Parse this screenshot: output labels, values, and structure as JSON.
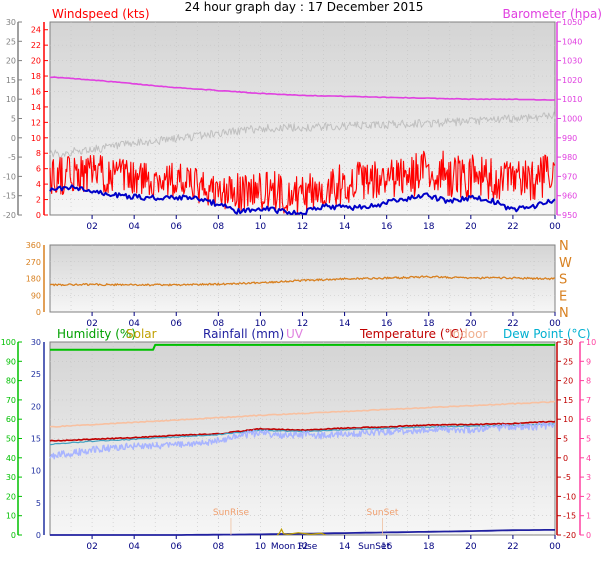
{
  "page_title": "24 hour graph day : 17 December 2015",
  "colors": {
    "panel_top": "#d8d8d8",
    "panel_bottom": "#f4f4f4",
    "gridline": "#c4c4c4",
    "windspeed": "#ff0000",
    "gust_axis": "#808080",
    "barometer": "#e040e0",
    "wind_avg": "#0000c8",
    "gust": "#c0c0c0",
    "direction": "#d88020",
    "humidity": "#00c000",
    "solar": "#c0a000",
    "rainfall": "#2020a0",
    "uv": "#e080e0",
    "temperature": "#c00000",
    "indoor": "#f8c0a0",
    "dewpoint": "#00b0d0",
    "temp_axis": "#ff40a0",
    "rain_axis": "#2030a0",
    "tick_text": "#404040"
  },
  "chart_data": [
    {
      "type": "line",
      "name": "wind-barometer",
      "title": "",
      "x_ticks": [
        "02",
        "04",
        "06",
        "08",
        "10",
        "12",
        "14",
        "16",
        "18",
        "20",
        "22",
        "00"
      ],
      "xlim": [
        0,
        24
      ],
      "left_outer_axis": {
        "ticks": [
          "30",
          "25",
          "20",
          "15",
          "10",
          "5",
          "0",
          "-5",
          "-10",
          "-15",
          "-20"
        ]
      },
      "left_axis": {
        "label": "Windspeed (kts)",
        "ticks": [
          "24",
          "22",
          "20",
          "18",
          "16",
          "14",
          "12",
          "10",
          "8",
          "6",
          "4",
          "2",
          "0"
        ],
        "ylim": [
          0,
          25
        ]
      },
      "right_axis": {
        "label": "Barometer (hpa)",
        "ticks": [
          "1050",
          "1040",
          "1030",
          "1020",
          "1010",
          "1000",
          "990",
          "980",
          "970",
          "960",
          "950"
        ],
        "ylim": [
          950,
          1050
        ]
      },
      "series": [
        {
          "role": "barometer",
          "axis": "right",
          "x": [
            0,
            2,
            4,
            6,
            8,
            10,
            12,
            14,
            16,
            18,
            20,
            22,
            24
          ],
          "y": [
            1021.5,
            1020,
            1018,
            1016,
            1014.5,
            1013,
            1012,
            1011.5,
            1011,
            1010.5,
            1010,
            1010,
            1009.5
          ]
        },
        {
          "role": "gust",
          "axis": "left",
          "x": [
            0,
            2,
            4,
            6,
            8,
            10,
            12,
            14,
            16,
            18,
            20,
            22,
            24
          ],
          "y": [
            7.8,
            8.5,
            9.2,
            9.9,
            10.6,
            11.2,
            11.3,
            11.5,
            11.7,
            11.9,
            12.1,
            12.5,
            12.9
          ]
        },
        {
          "role": "windspeed",
          "axis": "left",
          "low": [
            2.5,
            3,
            2.5,
            2,
            0.5,
            0.5,
            0,
            1.5,
            2,
            2.5,
            2,
            1.5,
            2.5
          ],
          "high": [
            7.5,
            8,
            7,
            7,
            5,
            6,
            5,
            7,
            7,
            8.5,
            8,
            7,
            8
          ],
          "x": [
            0,
            2,
            4,
            6,
            8,
            10,
            12,
            14,
            16,
            18,
            20,
            22,
            24
          ]
        },
        {
          "role": "wind_avg",
          "axis": "left",
          "x": [
            0,
            1,
            2,
            3,
            4,
            5,
            6,
            7,
            8,
            9,
            10,
            11,
            12,
            13,
            14,
            15,
            16,
            17,
            18,
            19,
            20,
            21,
            22,
            23,
            24
          ],
          "y": [
            3.2,
            3.6,
            3,
            2.6,
            2.4,
            2.2,
            2.3,
            2.1,
            1.4,
            0.4,
            0.9,
            0.5,
            0.3,
            1.1,
            1,
            1,
            1.6,
            2.1,
            2.5,
            1.7,
            2.3,
            1.9,
            0.6,
            1.2,
            1.9
          ]
        }
      ]
    },
    {
      "type": "line",
      "name": "wind-direction",
      "title": "",
      "x_ticks": [
        "02",
        "04",
        "06",
        "08",
        "10",
        "12",
        "14",
        "16",
        "18",
        "20",
        "22",
        "00"
      ],
      "xlim": [
        0,
        24
      ],
      "left_axis": {
        "ticks": [
          "360",
          "270",
          "180",
          "90",
          "0"
        ],
        "ylim": [
          0,
          360
        ]
      },
      "right_axis": {
        "ticks": [
          "N",
          "W",
          "S",
          "E",
          "N"
        ]
      },
      "series": [
        {
          "role": "direction",
          "x": [
            0,
            2,
            4,
            6,
            8,
            10,
            12,
            14,
            16,
            18,
            20,
            22,
            24
          ],
          "y": [
            145,
            148,
            146,
            145,
            150,
            158,
            170,
            178,
            182,
            190,
            182,
            183,
            178
          ]
        }
      ]
    },
    {
      "type": "line",
      "name": "temp-humidity",
      "title": "",
      "x_ticks": [
        "02",
        "04",
        "06",
        "08",
        "10",
        "12",
        "14",
        "16",
        "18",
        "20",
        "22",
        "00"
      ],
      "xlim": [
        0,
        24
      ],
      "left_outer_axis": {
        "label": "Humidity (%)",
        "ticks": [
          "100",
          "90",
          "80",
          "70",
          "60",
          "50",
          "40",
          "30",
          "20",
          "10",
          "0"
        ],
        "ylim": [
          0,
          100
        ]
      },
      "left_axis": {
        "label": "Rainfall (mm)",
        "ticks": [
          "30",
          "25",
          "20",
          "15",
          "10",
          "5",
          "0"
        ],
        "ylim": [
          0,
          30
        ]
      },
      "right_axis": {
        "label": "Temperature (°C)",
        "ticks": [
          "30",
          "25",
          "20",
          "15",
          "10",
          "5",
          "0",
          "-5",
          "-10",
          "-15",
          "-20"
        ],
        "ylim": [
          -20,
          30
        ]
      },
      "right_outer_axis": {
        "label": "UV",
        "ticks": [
          "10",
          "9",
          "8",
          "7",
          "6",
          "5",
          "4",
          "3",
          "2",
          "1",
          "0"
        ],
        "ylim": [
          0,
          10
        ]
      },
      "legend": [
        "Humidity (%)",
        "Solar",
        "Rainfall (mm)",
        "UV",
        "Temperature (°C)",
        "Indoor",
        "Dew Point (°C)"
      ],
      "annotations": [
        {
          "text": "SunRise",
          "x": 8.6
        },
        {
          "text": "SunSet",
          "x": 15.8
        },
        {
          "text": "Moon Rise",
          "x": 11.6
        },
        {
          "text": "SunSet",
          "x": 15.4
        }
      ],
      "series": [
        {
          "role": "humidity",
          "axis": "left_outer",
          "x": [
            0,
            4.9,
            5,
            24
          ],
          "y": [
            96,
            96,
            98.5,
            98.5
          ]
        },
        {
          "role": "indoor",
          "axis": "right",
          "x": [
            0,
            2,
            4,
            6,
            8,
            10,
            12,
            14,
            16,
            18,
            20,
            22,
            24
          ],
          "y": [
            8,
            8.6,
            9.2,
            9.8,
            10.4,
            11,
            11.5,
            12,
            12.5,
            13,
            13.5,
            14,
            14.5
          ]
        },
        {
          "role": "temperature",
          "axis": "right",
          "x": [
            0,
            2,
            4,
            6,
            8,
            10,
            12,
            14,
            16,
            18,
            20,
            22,
            24
          ],
          "y": [
            4.4,
            4.8,
            5.2,
            5.8,
            6.2,
            7.5,
            7.2,
            7.7,
            8,
            8.5,
            8.6,
            8.9,
            9.4
          ]
        },
        {
          "role": "dewpoint",
          "axis": "right",
          "x": [
            0,
            2,
            4,
            6,
            8,
            10,
            12,
            14,
            16,
            18,
            20,
            22,
            24
          ],
          "y": [
            3.5,
            4.3,
            4.8,
            5.4,
            6,
            7.1,
            6.8,
            7.3,
            7.6,
            8,
            8.2,
            8.4,
            8.8
          ]
        },
        {
          "role": "dewpoint_raw",
          "axis": "right",
          "x": [
            0,
            1,
            2,
            3,
            4,
            5,
            6,
            7,
            8,
            9,
            10,
            11,
            12,
            13,
            14,
            15,
            16,
            17,
            18,
            19,
            20,
            21,
            22,
            23,
            24
          ],
          "y": [
            0.5,
            1.2,
            2,
            2.6,
            3,
            3.2,
            3.3,
            3.6,
            4.5,
            5.8,
            6.5,
            5.9,
            6,
            5.8,
            6.3,
            6.4,
            6.8,
            7,
            7.5,
            7.2,
            7.3,
            7.7,
            8,
            8.1,
            8.4
          ]
        },
        {
          "role": "rainfall",
          "axis": "left",
          "x": [
            0,
            6,
            8,
            10,
            12,
            14,
            16,
            18,
            20,
            22,
            24
          ],
          "y": [
            0,
            0,
            0.05,
            0.1,
            0.2,
            0.3,
            0.4,
            0.5,
            0.6,
            0.75,
            0.8
          ]
        }
      ]
    }
  ]
}
